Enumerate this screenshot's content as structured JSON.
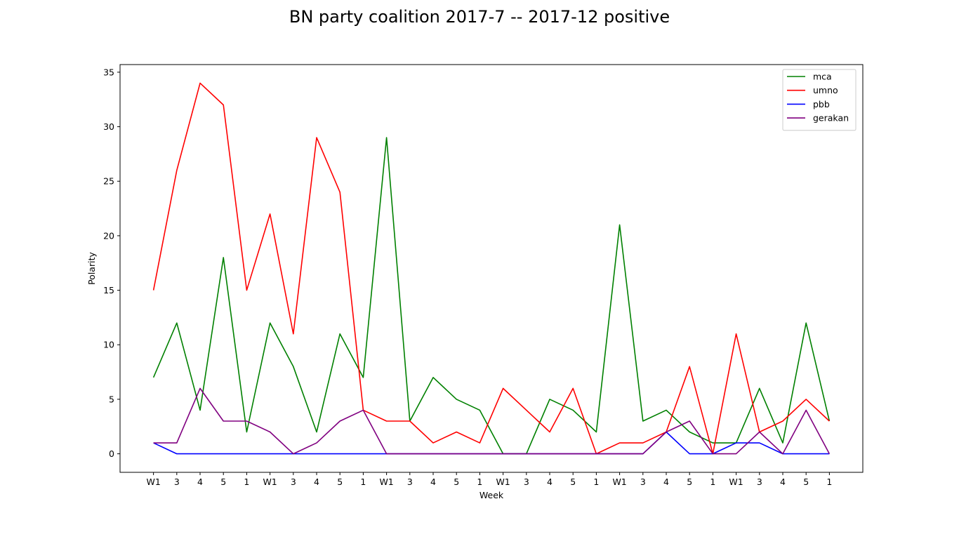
{
  "chart_data": {
    "type": "line",
    "title": "BN party coalition 2017-7 -- 2017-12 positive",
    "xlabel": "Week",
    "ylabel": "Polarity",
    "categories": [
      "W1",
      "3",
      "4",
      "5",
      "1",
      "W1",
      "3",
      "4",
      "5",
      "1",
      "W1",
      "3",
      "4",
      "5",
      "1",
      "W1",
      "3",
      "4",
      "5",
      "1",
      "W1",
      "3",
      "4",
      "5",
      "1",
      "W1",
      "3",
      "4",
      "5",
      "1"
    ],
    "ylim": [
      -1.7,
      35.7
    ],
    "yticks": [
      0,
      5,
      10,
      15,
      20,
      25,
      30,
      35
    ],
    "grid": false,
    "legend_position": "top-right",
    "series": [
      {
        "name": "mca",
        "color": "#008000",
        "values": [
          7,
          12,
          4,
          18,
          2,
          12,
          8,
          2,
          11,
          7,
          29,
          3,
          7,
          5,
          4,
          0,
          0,
          5,
          4,
          2,
          21,
          3,
          4,
          2,
          1,
          1,
          6,
          1,
          12,
          3
        ]
      },
      {
        "name": "umno",
        "color": "#ff0000",
        "values": [
          15,
          26,
          34,
          32,
          15,
          22,
          11,
          29,
          24,
          4,
          3,
          3,
          1,
          2,
          1,
          6,
          4,
          2,
          6,
          0,
          1,
          1,
          2,
          8,
          0,
          11,
          2,
          3,
          5,
          3
        ]
      },
      {
        "name": "pbb",
        "color": "#0000ff",
        "values": [
          1,
          0,
          0,
          0,
          0,
          0,
          0,
          0,
          0,
          0,
          0,
          0,
          0,
          0,
          0,
          0,
          0,
          0,
          0,
          0,
          0,
          0,
          2,
          0,
          0,
          1,
          1,
          0,
          0,
          0
        ]
      },
      {
        "name": "gerakan",
        "color": "#800080",
        "values": [
          1,
          1,
          6,
          3,
          3,
          2,
          0,
          1,
          3,
          4,
          0,
          0,
          0,
          0,
          0,
          0,
          0,
          0,
          0,
          0,
          0,
          0,
          2,
          3,
          0,
          0,
          2,
          0,
          4,
          0
        ]
      }
    ]
  }
}
